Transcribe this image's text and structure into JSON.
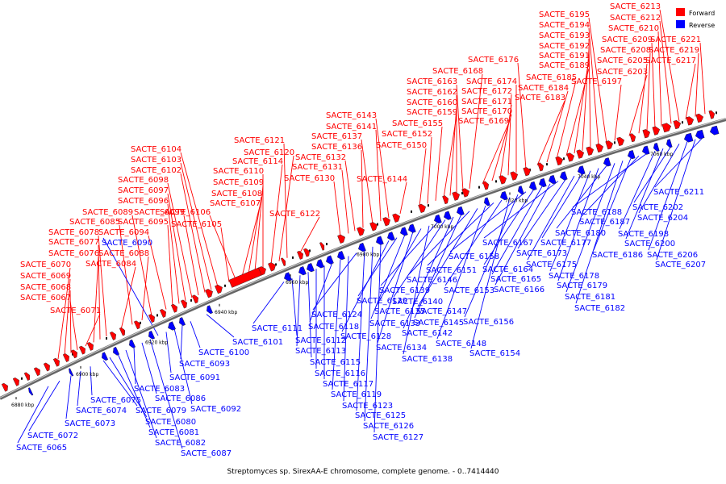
{
  "caption": "Streptomyces sp. SirexAA-E chromosome, complete genome. - 0..7414440",
  "legend": {
    "forward": {
      "label": "Forward",
      "color": "#ff0000"
    },
    "reverse": {
      "label": "Reverse",
      "color": "#0000ff"
    }
  },
  "ticks": [
    "6880 kbp",
    "6900 kbp",
    "6920 kbp",
    "6940 kbp",
    "6960 kbp",
    "6980 kbp",
    "7000 kbp",
    "7020 kbp",
    "7040 kbp",
    "7060 kbp"
  ],
  "forward_genes": [
    "SACTE_6067",
    "SACTE_6068",
    "SACTE_6069",
    "SACTE_6070",
    "SACTE_6071",
    "SACTE_6076",
    "SACTE_6077",
    "SACTE_6078",
    "SACTE_6084",
    "SACTE_6085",
    "SACTE_6088",
    "SACTE_6089",
    "SACTE_6094",
    "SACTE_6095",
    "SACTE_6096",
    "SACTE_6097",
    "SACTE_6098",
    "SACTE_6099",
    "SACTE_6102",
    "SACTE_6103",
    "SACTE_6104",
    "SACTE_6105",
    "SACTE_6106",
    "SACTE_6107",
    "SACTE_6108",
    "SACTE_6109",
    "SACTE_6110",
    "SACTE_6114",
    "SACTE_6120",
    "SACTE_6121",
    "SACTE_6122",
    "SACTE_6130",
    "SACTE_6131",
    "SACTE_6132",
    "SACTE_6136",
    "SACTE_6137",
    "SACTE_6141",
    "SACTE_6143",
    "SACTE_6144",
    "SACTE_6150",
    "SACTE_6152",
    "SACTE_6155",
    "SACTE_6159",
    "SACTE_6160",
    "SACTE_6162",
    "SACTE_6163",
    "SACTE_6168",
    "SACTE_6169",
    "SACTE_6170",
    "SACTE_6171",
    "SACTE_6172",
    "SACTE_6174",
    "SACTE_6176",
    "SACTE_6183",
    "SACTE_6184",
    "SACTE_6185",
    "SACTE_6189",
    "SACTE_6191",
    "SACTE_6192",
    "SACTE_6193",
    "SACTE_6194",
    "SACTE_6195",
    "SACTE_6197",
    "SACTE_6203",
    "SACTE_6205",
    "SACTE_6208",
    "SACTE_6209",
    "SACTE_6210",
    "SACTE_6212",
    "SACTE_6213",
    "SACTE_6217",
    "SACTE_6219",
    "SACTE_6221"
  ],
  "reverse_genes": [
    "SACTE_6065",
    "SACTE_6072",
    "SACTE_6073",
    "SACTE_6074",
    "SACTE_6075",
    "SACTE_6079",
    "SACTE_6080",
    "SACTE_6081",
    "SACTE_6082",
    "SACTE_6083",
    "SACTE_6086",
    "SACTE_6087",
    "SACTE_6090",
    "SACTE_6091",
    "SACTE_6092",
    "SACTE_6093",
    "SACTE_6100",
    "SACTE_6101",
    "SACTE_6111",
    "SACTE_6112",
    "SACTE_6113",
    "SACTE_6115",
    "SACTE_6116",
    "SACTE_6117",
    "SACTE_6118",
    "SACTE_6119",
    "SACTE_6123",
    "SACTE_6124",
    "SACTE_6125",
    "SACTE_6126",
    "SACTE_6127",
    "SACTE_6128",
    "SACTE_6129",
    "SACTE_6133",
    "SACTE_6134",
    "SACTE_6135",
    "SACTE_6138",
    "SACTE_6139",
    "SACTE_6140",
    "SACTE_6142",
    "SACTE_6145",
    "SACTE_6146",
    "SACTE_6147",
    "SACTE_6148",
    "SACTE_6151",
    "SACTE_6153",
    "SACTE_6154",
    "SACTE_6156",
    "SACTE_6158",
    "SACTE_6164",
    "SACTE_6165",
    "SACTE_6166",
    "SACTE_6167",
    "SACTE_6173",
    "SACTE_6175",
    "SACTE_6177",
    "SACTE_6178",
    "SACTE_6179",
    "SACTE_6180",
    "SACTE_6181",
    "SACTE_6182",
    "SACTE_6186",
    "SACTE_6187",
    "SACTE_6188",
    "SACTE_6198",
    "SACTE_6200",
    "SACTE_6202",
    "SACTE_6204",
    "SACTE_6206",
    "SACTE_6207",
    "SACTE_6211"
  ]
}
